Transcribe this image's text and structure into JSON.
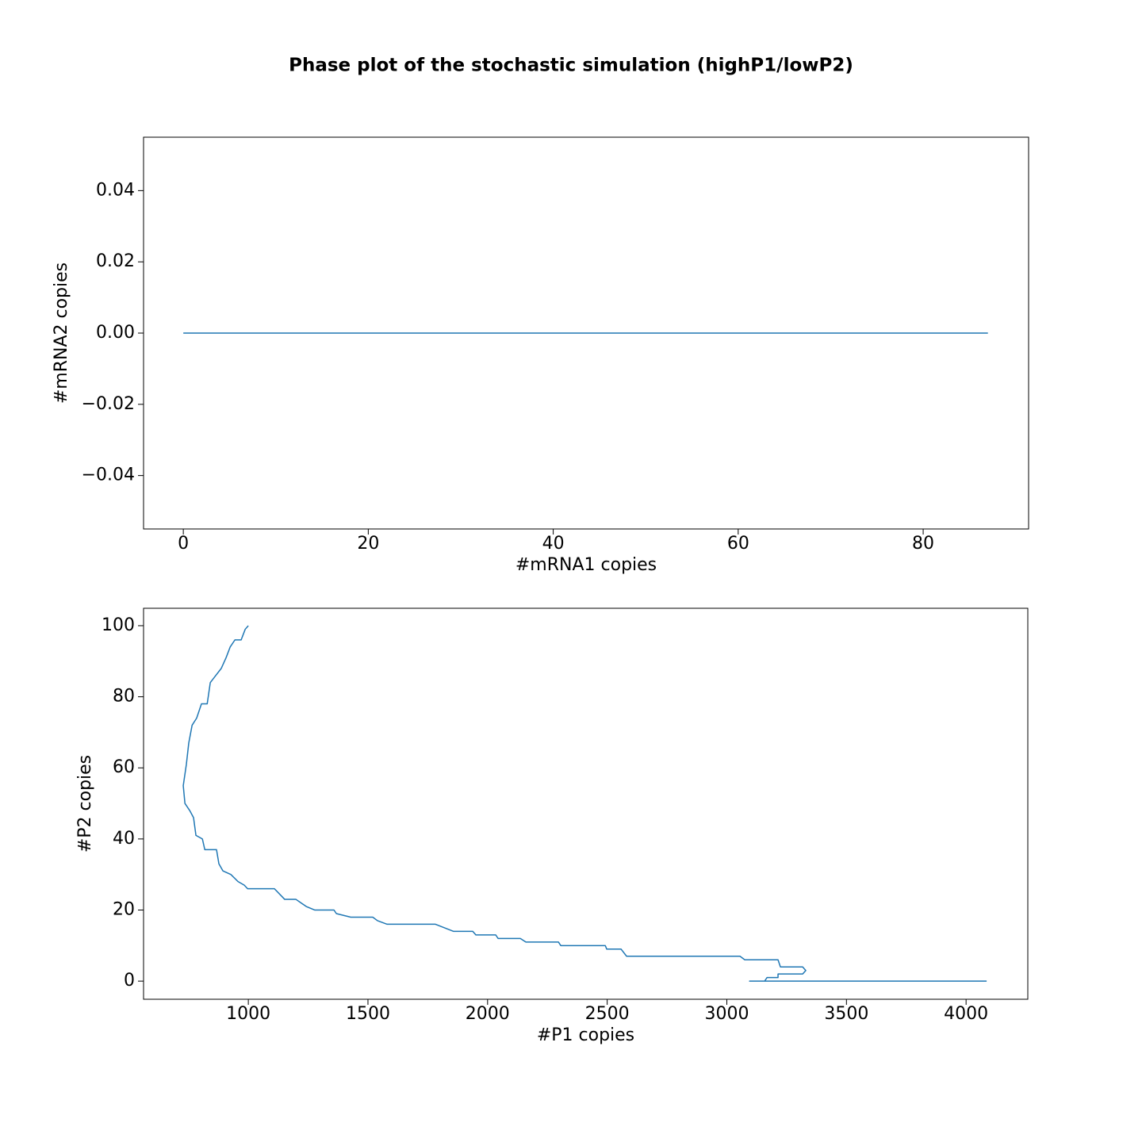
{
  "title": "Phase plot of the stochastic simulation (highP1/lowP2)",
  "chart_data": [
    {
      "type": "line",
      "x_label": "#mRNA1 copies",
      "y_label": "#mRNA2 copies",
      "color": "#1f77b4",
      "grid": false,
      "x": [
        0,
        64,
        87
      ],
      "values": [
        0,
        0,
        0
      ],
      "xlim": [
        -4.3,
        91.4
      ],
      "ylim": [
        -0.055,
        0.055
      ],
      "xticks": [
        0,
        20,
        40,
        60,
        80
      ],
      "yticks": [
        {
          "value": -0.04,
          "label": "−0.04"
        },
        {
          "value": -0.02,
          "label": "−0.02"
        },
        {
          "value": 0,
          "label": "0.00"
        },
        0.02,
        0.04
      ]
    },
    {
      "type": "line",
      "x_label": "#P1 copies",
      "y_label": "#P2 copies",
      "color": "#1f77b4",
      "grid": false,
      "x": [
        1000,
        987,
        970,
        944,
        924,
        907,
        887,
        864,
        841,
        828,
        804,
        784,
        765,
        751,
        741,
        728,
        735,
        755,
        771,
        781,
        808,
        818,
        867,
        877,
        894,
        927,
        957,
        983,
        997,
        1109,
        1152,
        1199,
        1242,
        1278,
        1358,
        1368,
        1428,
        1520,
        1540,
        1580,
        1782,
        1858,
        1938,
        1951,
        2034,
        2044,
        2137,
        2160,
        2296,
        2306,
        2492,
        2498,
        2558,
        2581,
        3055,
        3075,
        3214,
        3224,
        3317,
        3330,
        3317,
        3214,
        3214,
        3168,
        3158,
        3095,
        4086
      ],
      "values": [
        100,
        99,
        96,
        96,
        94,
        91,
        88,
        86,
        84,
        78,
        78,
        74,
        72,
        67,
        61,
        55,
        50,
        48,
        46,
        41,
        40,
        37,
        37,
        33,
        31,
        30,
        28,
        27,
        26,
        26,
        23,
        23,
        21,
        20,
        20,
        19,
        18,
        18,
        17,
        16,
        16,
        14,
        14,
        13,
        13,
        12,
        12,
        11,
        11,
        10,
        10,
        9,
        9,
        7,
        7,
        6,
        6,
        4,
        4,
        3,
        2,
        2,
        1,
        1,
        0,
        0,
        0
      ],
      "xlim": [
        562,
        4258
      ],
      "ylim": [
        -5.1,
        104.9
      ],
      "xticks": [
        1000,
        1500,
        2000,
        2500,
        3000,
        3500,
        4000
      ],
      "yticks": [
        0,
        20,
        40,
        60,
        80,
        100
      ]
    }
  ]
}
